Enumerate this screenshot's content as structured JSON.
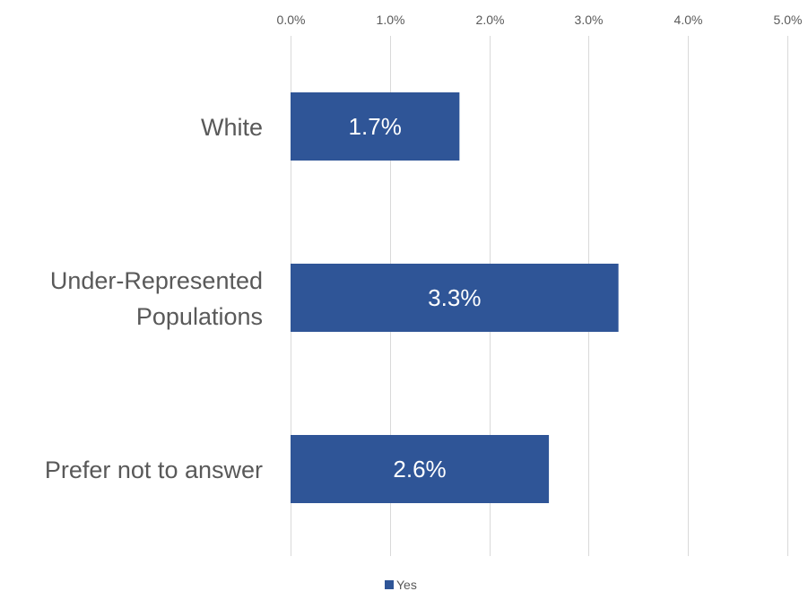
{
  "chart_data": {
    "type": "bar",
    "orientation": "horizontal",
    "categories": [
      "White",
      "Under-Represented Populations",
      "Prefer not to answer"
    ],
    "category_label_lines": [
      [
        "White"
      ],
      [
        "Under-Represented",
        "Populations"
      ],
      [
        "Prefer not to answer"
      ]
    ],
    "series": [
      {
        "name": "Yes",
        "values": [
          1.7,
          3.3,
          2.6
        ],
        "color": "#2f5597"
      }
    ],
    "data_labels": [
      "1.7%",
      "3.3%",
      "2.6%"
    ],
    "xlim": [
      0,
      5
    ],
    "x_ticks": [
      0,
      1,
      2,
      3,
      4,
      5
    ],
    "x_tick_labels": [
      "0.0%",
      "1.0%",
      "2.0%",
      "3.0%",
      "4.0%",
      "5.0%"
    ],
    "x_axis_position": "top",
    "grid": true,
    "legend": {
      "position": "bottom",
      "entries": [
        "Yes"
      ]
    }
  }
}
